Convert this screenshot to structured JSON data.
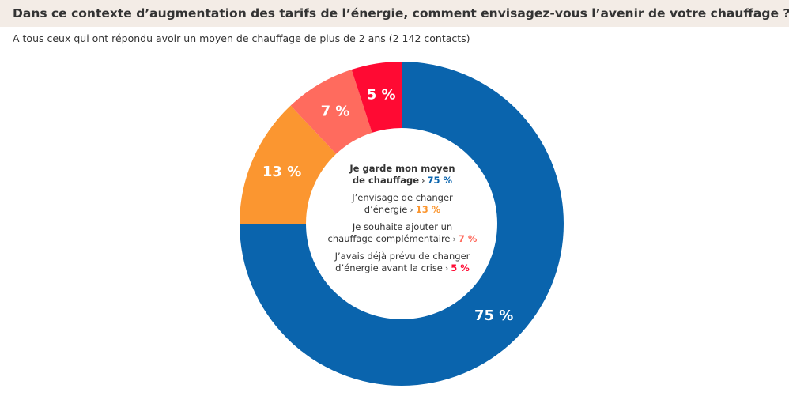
{
  "header": {
    "title": "Dans ce contexte d’augmentation des tarifs de l’énergie, comment envisagez-vous l’avenir de votre chauffage ?",
    "subtitle": "A tous ceux qui ont répondu avoir un moyen de chauffage de plus de 2 ans (2 142 contacts)"
  },
  "chart_data": {
    "type": "pie",
    "title": "Dans ce contexte d’augmentation des tarifs de l’énergie, comment envisagez-vous l’avenir de votre chauffage ?",
    "subtitle": "A tous ceux qui ont répondu avoir un moyen de chauffage de plus de 2 ans (2 142 contacts)",
    "donut": true,
    "legend_position": "center",
    "slices": [
      {
        "line1": "Je garde mon moyen",
        "line2": "de chauffage",
        "value": 75,
        "label": "75 %",
        "color": "#0a64ad",
        "bold": true
      },
      {
        "line1": "J’envisage de changer",
        "line2": "d’énergie",
        "value": 13,
        "label": "13 %",
        "color": "#fb9630",
        "bold": false
      },
      {
        "line1": "Je souhaite ajouter un",
        "line2": "chauffage complémentaire",
        "value": 7,
        "label": "7 %",
        "color": "#ff6b5e",
        "bold": false
      },
      {
        "line1": "J’avais déjà prévu de changer",
        "line2": "d’énergie avant la crise",
        "value": 5,
        "label": "5 %",
        "color": "#ff0a33",
        "bold": false
      }
    ]
  }
}
